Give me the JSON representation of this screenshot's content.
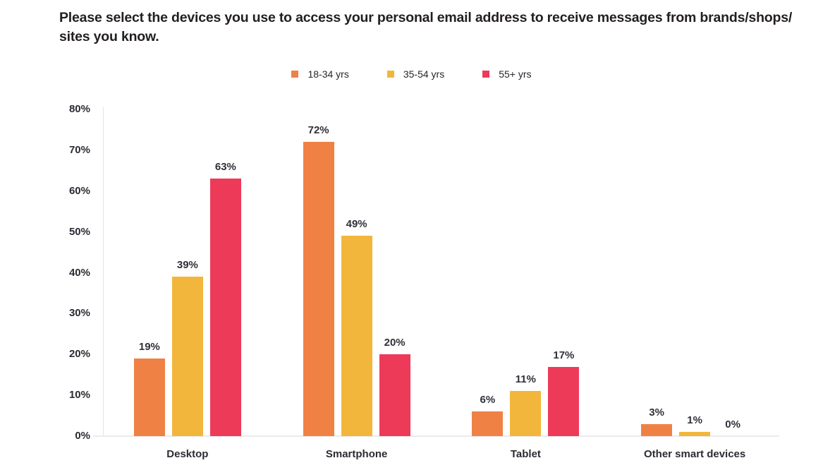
{
  "header": {
    "title_line1": "Please select the devices you use to access your personal email address to receive messages from brands/shops/",
    "title_line2": "sites you know."
  },
  "colors": {
    "series_18_34": "#F08144",
    "series_35_54": "#F3B63C",
    "series_55_plus": "#EE3A59",
    "axis_line": "#E4E4E8",
    "baseline": "#EBEBED",
    "text_dark": "#2B2B34",
    "title_text": "#231F20"
  },
  "chart_data": {
    "type": "bar",
    "title": "Please select the devices you use to access your personal email address to receive messages from brands/shops/ sites you know.",
    "categories": [
      "Desktop",
      "Smartphone",
      "Tablet",
      "Other smart devices"
    ],
    "series": [
      {
        "name": "18-34 yrs",
        "color": "#F08144",
        "values": [
          19,
          72,
          6,
          3
        ]
      },
      {
        "name": "35-54 yrs",
        "color": "#F3B63C",
        "values": [
          39,
          49,
          11,
          1
        ]
      },
      {
        "name": "55+ yrs",
        "color": "#EE3A59",
        "values": [
          63,
          20,
          17,
          0
        ]
      }
    ],
    "value_labels": [
      [
        "19%",
        "72%",
        "6%",
        "3%"
      ],
      [
        "39%",
        "49%",
        "11%",
        "1%"
      ],
      [
        "63%",
        "20%",
        "17%",
        "0%"
      ]
    ],
    "xlabel": "",
    "ylabel": "",
    "ylim": [
      0,
      80
    ],
    "yticks": [
      "80%",
      "70%",
      "60%",
      "50%",
      "40%",
      "30%",
      "20%",
      "10%",
      "0%"
    ],
    "grid": false,
    "legend_position": "top-center",
    "value_label_suffix": "%"
  }
}
